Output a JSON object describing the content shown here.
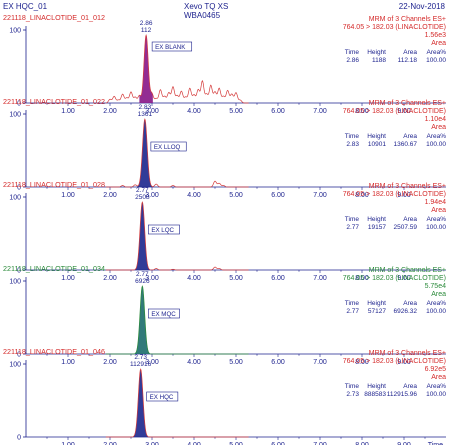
{
  "header": {
    "sample": "EX HQC_01",
    "instrument": "Xevo TQ XS",
    "system": "WBA0465",
    "date": "22-Nov-2018"
  },
  "chart_data": {
    "type": "line",
    "xlabel": "Time",
    "xlim": [
      0,
      10
    ],
    "ylim": [
      0,
      100
    ],
    "x_ticks": [
      "1.00",
      "2.00",
      "3.00",
      "4.00",
      "5.00",
      "6.00",
      "7.00",
      "8.00",
      "9.00"
    ],
    "y_ticks": [
      "0",
      "100"
    ],
    "panels": [
      {
        "file": "221118_LINACLOTIDE_01_012",
        "method": "MRM of 3 Channels ES+",
        "transition": "764.05 > 182.03 (LINACLOTIDE)",
        "intensity": "1.56e3",
        "detection": "Area",
        "label": "EX BLANK",
        "apex_time": "2.86",
        "apex_area": "112",
        "peak_color": "#8a1a8a",
        "line_color": "#d43a3a",
        "text_color": "#d42a2a",
        "table": {
          "headers": [
            "Time",
            "Height",
            "Area",
            "Area%"
          ],
          "values": [
            "2.86",
            "1188",
            "112.18",
            "100.00"
          ]
        },
        "peak": {
          "rt": 2.86,
          "sigma": 0.05,
          "height": 93
        },
        "noise": [
          [
            2.0,
            5
          ],
          [
            2.1,
            9
          ],
          [
            2.2,
            4
          ],
          [
            2.3,
            12
          ],
          [
            2.4,
            7
          ],
          [
            2.5,
            15
          ],
          [
            2.6,
            8
          ],
          [
            2.7,
            10
          ],
          [
            3.0,
            12
          ],
          [
            3.1,
            6
          ],
          [
            3.2,
            18
          ],
          [
            3.3,
            9
          ],
          [
            3.4,
            14
          ],
          [
            3.5,
            22
          ],
          [
            3.6,
            10
          ],
          [
            3.7,
            16
          ],
          [
            3.8,
            8
          ],
          [
            3.9,
            20
          ],
          [
            4.0,
            11
          ],
          [
            4.1,
            18
          ],
          [
            4.2,
            30
          ],
          [
            4.3,
            12
          ],
          [
            4.4,
            24
          ],
          [
            4.5,
            15
          ],
          [
            4.6,
            20
          ],
          [
            4.7,
            9
          ],
          [
            4.8,
            17
          ],
          [
            4.9,
            12
          ],
          [
            5.0,
            14
          ],
          [
            5.1,
            4
          ]
        ]
      },
      {
        "file": "221118_LINACLOTIDE_01_022",
        "method": "MRM of 3 Channels ES+",
        "transition": "764.05 > 182.03 (LINACLOTIDE)",
        "intensity": "1.10e4",
        "detection": "Area",
        "label": "EX LLOQ",
        "apex_time": "2.83",
        "apex_area": "1361",
        "peak_color": "#1f2a8f",
        "line_color": "#d43a3a",
        "text_color": "#d42a2a",
        "table": {
          "headers": [
            "Time",
            "Height",
            "Area",
            "Area%"
          ],
          "values": [
            "2.83",
            "10901",
            "1360.67",
            "100.00"
          ]
        },
        "peak": {
          "rt": 2.83,
          "sigma": 0.055,
          "height": 93
        },
        "noise": [
          [
            2.3,
            2
          ],
          [
            2.6,
            3
          ],
          [
            3.1,
            4
          ],
          [
            3.5,
            2
          ],
          [
            4.5,
            8
          ],
          [
            4.6,
            5
          ],
          [
            4.7,
            2
          ]
        ]
      },
      {
        "file": "221118_LINACLOTIDE_01_028",
        "method": "MRM of 3 Channels ES+",
        "transition": "764.05 > 182.03 (LINACLOTIDE)",
        "intensity": "1.94e4",
        "detection": "Area",
        "label": "EX LQC",
        "apex_time": "2.77",
        "apex_area": "2508",
        "peak_color": "#1f2a8f",
        "line_color": "#d43a3a",
        "text_color": "#d42a2a",
        "table": {
          "headers": [
            "Time",
            "Height",
            "Area",
            "Area%"
          ],
          "values": [
            "2.77",
            "19157",
            "2507.59",
            "100.00"
          ]
        },
        "peak": {
          "rt": 2.77,
          "sigma": 0.055,
          "height": 93
        },
        "noise": [
          [
            3.1,
            2
          ],
          [
            3.5,
            1
          ],
          [
            4.5,
            4
          ],
          [
            4.6,
            2
          ]
        ]
      },
      {
        "file": "221118_LINACLOTIDE_01_034",
        "method": "MRM of 3 Channels ES+",
        "transition": "764.05 > 182.03 (LINACLOTIDE)",
        "intensity": "5.75e4",
        "detection": "Area",
        "label": "EX MQC",
        "apex_time": "2.77",
        "apex_area": "6926",
        "peak_color": "#1f6f6f",
        "line_color": "#2a8a3a",
        "text_color": "#2a8a3a",
        "table": {
          "headers": [
            "Time",
            "Height",
            "Area",
            "Area%"
          ],
          "values": [
            "2.77",
            "57127",
            "6926.32",
            "100.00"
          ]
        },
        "peak": {
          "rt": 2.77,
          "sigma": 0.055,
          "height": 93
        },
        "noise": []
      },
      {
        "file": "221118_LINACLOTIDE_01_046",
        "method": "MRM of 3 Channels ES+",
        "transition": "764.05 > 182.03 (LINACLOTIDE)",
        "intensity": "6.92e5",
        "detection": "Area",
        "label": "EX HQC",
        "apex_time": "2.73",
        "apex_area": "112916",
        "peak_color": "#1f2a8f",
        "line_color": "#d43a3a",
        "text_color": "#d42a2a",
        "table": {
          "headers": [
            "Time",
            "Height",
            "Area",
            "Area%"
          ],
          "values": [
            "2.73",
            "888583",
            "112915.96",
            "100.00"
          ]
        },
        "peak": {
          "rt": 2.73,
          "sigma": 0.055,
          "height": 93
        },
        "noise": []
      }
    ]
  }
}
